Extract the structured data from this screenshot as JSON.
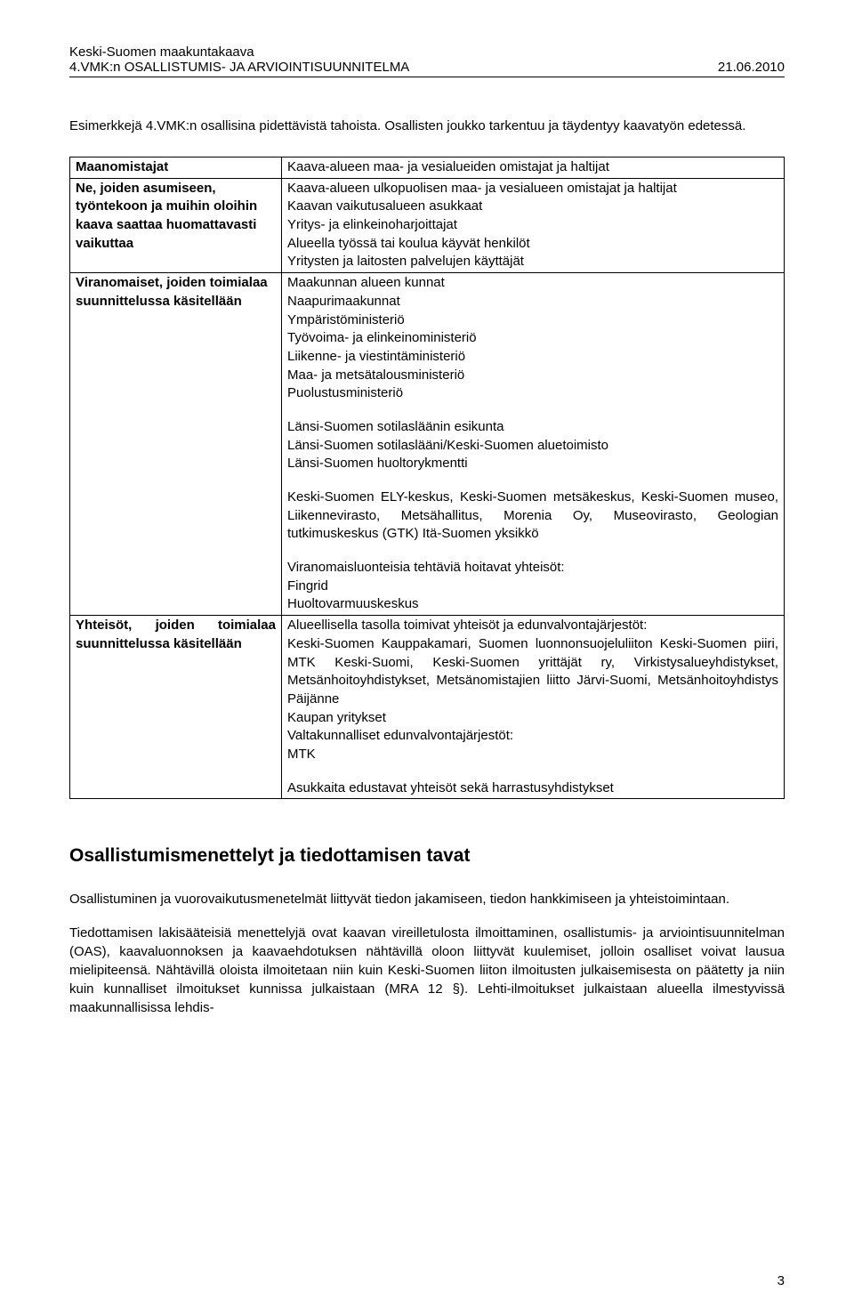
{
  "header": {
    "line1": "Keski-Suomen maakuntakaava",
    "line2_left": "4.VMK:n OSALLISTUMIS- JA ARVIOINTISUUNNITELMA",
    "line2_right": "21.06.2010"
  },
  "intro": "Esimerkkejä 4.VMK:n osallisina pidettävistä tahoista. Osallisten joukko tarkentuu ja täydentyy kaavatyön edetessä.",
  "table": {
    "row1": {
      "left": "Maanomistajat",
      "right": "Kaava-alueen maa- ja vesialueiden omistajat ja haltijat"
    },
    "row2": {
      "left": "Ne, joiden asumiseen, työntekoon ja muihin oloihin kaava saattaa huomattavasti vaikuttaa",
      "right_lines": [
        "Kaava-alueen ulkopuolisen maa- ja vesialueen omistajat ja haltijat",
        "Kaavan vaikutusalueen asukkaat",
        "Yritys- ja elinkeinoharjoittajat",
        "Alueella työssä tai koulua käyvät henkilöt",
        "Yritysten ja laitosten palvelujen käyttäjät"
      ]
    },
    "row3": {
      "left": "Viranomaiset, joiden toimialaa suunnittelussa käsitellään",
      "p1_lines": [
        "Maakunnan alueen kunnat",
        "Naapurimaakunnat",
        "Ympäristöministeriö",
        "Työvoima- ja elinkeinoministeriö",
        "Liikenne- ja viestintäministeriö",
        "Maa- ja metsätalousministeriö",
        "Puolustusministeriö"
      ],
      "p2_lines": [
        "Länsi-Suomen sotilasläänin esikunta",
        "Länsi-Suomen sotilaslääni/Keski-Suomen aluetoimisto",
        "Länsi-Suomen huoltorykmentti"
      ],
      "p3": "Keski-Suomen ELY-keskus, Keski-Suomen metsäkeskus, Keski-Suomen museo, Liikennevirasto, Metsähallitus, Morenia Oy, Museovirasto, Geologian tutkimuskeskus (GTK) Itä-Suomen yksikkö",
      "p4_lines": [
        "Viranomaisluonteisia tehtäviä hoitavat yhteisöt:",
        "Fingrid",
        "Huoltovarmuuskeskus"
      ]
    },
    "row4": {
      "left": "Yhteisöt, joiden toimialaa suunnittelussa käsitellään",
      "p1_open": "Alueellisella tasolla toimivat yhteisöt ja edunvalvontajärjestöt:",
      "p1_body": "Keski-Suomen Kauppakamari, Suomen luonnonsuojeluliiton Keski-Suomen piiri, MTK Keski-Suomi, Keski-Suomen yrittäjät ry, Virkistysalueyhdistykset, Metsänhoitoyhdistykset, Metsänomistajien liitto Järvi-Suomi, Metsänhoitoyhdistys Päijänne",
      "p1_tail_lines": [
        "Kaupan yritykset",
        "Valtakunnalliset edunvalvontajärjestöt:",
        "MTK"
      ],
      "p2": "Asukkaita edustavat yhteisöt sekä harrastusyhdistykset"
    }
  },
  "section_heading": "Osallistumismenettelyt ja tiedottamisen tavat",
  "body_p1": "Osallistuminen ja vuorovaikutusmenetelmät liittyvät tiedon jakamiseen, tiedon hankkimiseen ja yhteistoimintaan.",
  "body_p2": "Tiedottamisen lakisääteisiä menettelyjä ovat kaavan vireilletulosta ilmoittaminen, osallistumis- ja arviointisuunnitelman (OAS), kaavaluonnoksen ja kaavaehdotuksen nähtävillä oloon liittyvät kuulemiset, jolloin osalliset voivat lausua mielipiteensä. Nähtävillä oloista ilmoitetaan niin kuin Keski-Suomen liiton ilmoitusten julkaisemisesta on päätetty ja niin kuin kunnalliset ilmoitukset kunnissa julkaistaan (MRA 12 §). Lehti-ilmoitukset julkaistaan alueella ilmestyvissä maakunnallisissa lehdis-",
  "page_number": "3"
}
